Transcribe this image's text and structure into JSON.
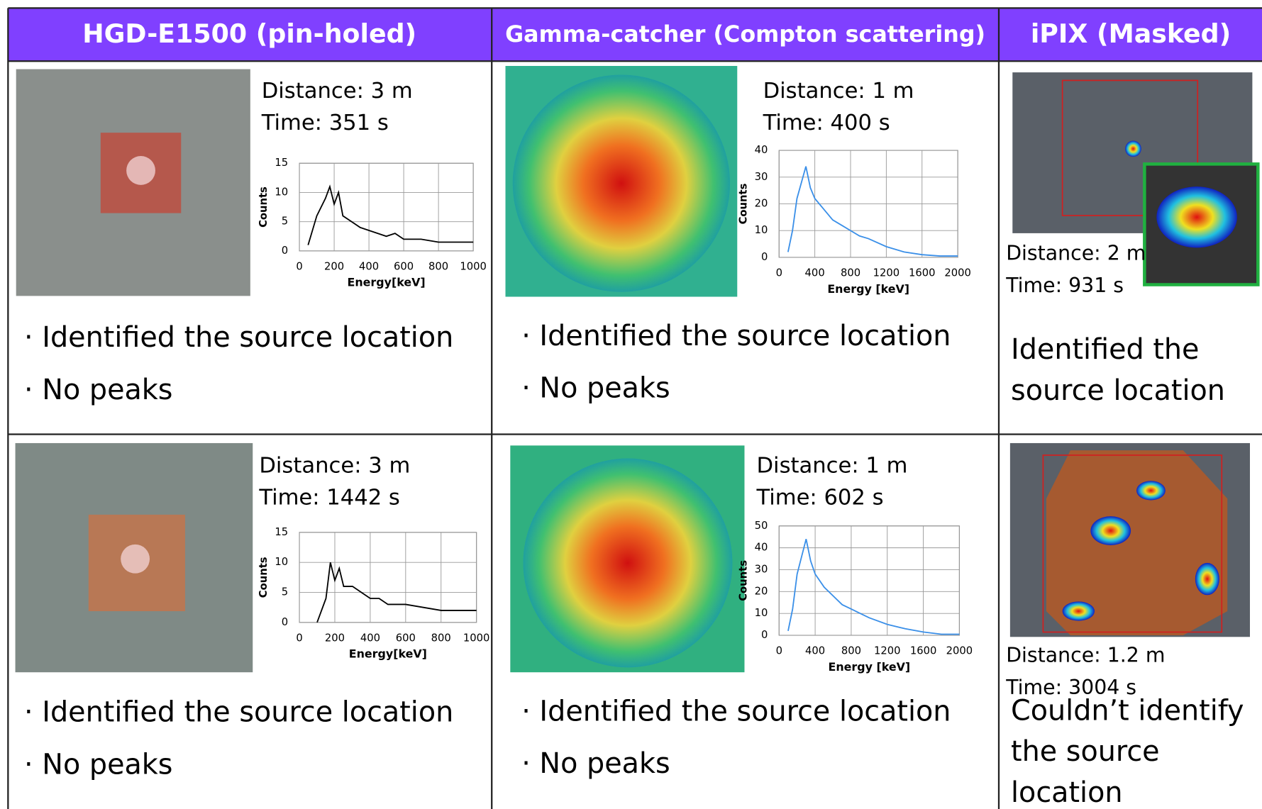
{
  "header": [
    "HGD-E1500 (pin-holed)",
    "Gamma-catcher (Compton scattering)",
    "iPIX (Masked)"
  ],
  "rows": [
    [
      {
        "distance": "Distance: 3 m",
        "time": "Time: 351 s",
        "spectrum": {
          "type": "line",
          "color": "#000000",
          "x_label": "Energy[keV]",
          "y_label": "Counts",
          "grid": true,
          "xlim": [
            0,
            1000
          ],
          "ylim": [
            0,
            15
          ],
          "xticks": [
            0,
            200,
            400,
            600,
            800,
            1000
          ],
          "yticks": [
            0,
            5,
            10,
            15
          ],
          "x": [
            50,
            100,
            150,
            175,
            200,
            225,
            250,
            300,
            350,
            400,
            450,
            500,
            550,
            600,
            700,
            800,
            900,
            1000
          ],
          "values": [
            1,
            6,
            9,
            11,
            8,
            10,
            6,
            5,
            4,
            3.5,
            3,
            2.5,
            3,
            2,
            2,
            1.5,
            1.5,
            1.5
          ]
        },
        "notes": [
          "· Identified the source location",
          "· No peaks"
        ]
      },
      {
        "distance": "Distance: 1 m",
        "time": "Time: 400 s",
        "spectrum": {
          "type": "line",
          "color": "#3a8fe8",
          "x_label": "Energy [keV]",
          "y_label": "Counts",
          "grid": true,
          "xlim": [
            0,
            2000
          ],
          "ylim": [
            0,
            40
          ],
          "xticks": [
            0,
            400,
            800,
            1200,
            1600,
            2000
          ],
          "yticks": [
            0,
            10,
            20,
            30,
            40
          ],
          "x": [
            100,
            150,
            200,
            250,
            300,
            350,
            400,
            500,
            600,
            700,
            800,
            900,
            1000,
            1200,
            1400,
            1600,
            1800,
            2000
          ],
          "values": [
            2,
            10,
            22,
            28,
            34,
            26,
            22,
            18,
            14,
            12,
            10,
            8,
            7,
            4,
            2,
            1,
            0.5,
            0.5
          ]
        },
        "notes": [
          "· Identified the source location",
          "· No peaks"
        ]
      },
      {
        "distance": "Distance: 2 m",
        "time": "Time: 931 s",
        "result": [
          "Identified the",
          "source location"
        ]
      }
    ],
    [
      {
        "distance": "Distance: 3 m",
        "time": "Time: 1442 s",
        "spectrum": {
          "type": "line",
          "color": "#000000",
          "x_label": "Energy[keV]",
          "y_label": "Counts",
          "grid": true,
          "xlim": [
            0,
            1000
          ],
          "ylim": [
            0,
            15
          ],
          "xticks": [
            0,
            200,
            400,
            600,
            800,
            1000
          ],
          "yticks": [
            0,
            5,
            10,
            15
          ],
          "x": [
            100,
            150,
            175,
            200,
            225,
            250,
            300,
            350,
            400,
            450,
            500,
            600,
            700,
            800,
            900,
            1000
          ],
          "values": [
            0,
            4,
            10,
            7,
            9,
            6,
            6,
            5,
            4,
            4,
            3,
            3,
            2.5,
            2,
            2,
            2
          ]
        },
        "notes": [
          "· Identified the source location",
          "· No peaks"
        ]
      },
      {
        "distance": "Distance: 1 m",
        "time": "Time: 602 s",
        "spectrum": {
          "type": "line",
          "color": "#3a8fe8",
          "x_label": "Energy [keV]",
          "y_label": "Counts",
          "grid": true,
          "xlim": [
            0,
            2000
          ],
          "ylim": [
            0,
            50
          ],
          "xticks": [
            0,
            400,
            800,
            1200,
            1600,
            2000
          ],
          "yticks": [
            0,
            10,
            20,
            30,
            40,
            50
          ],
          "x": [
            100,
            150,
            200,
            250,
            300,
            350,
            400,
            500,
            600,
            700,
            800,
            900,
            1000,
            1200,
            1400,
            1600,
            1800,
            2000
          ],
          "values": [
            2,
            12,
            28,
            36,
            44,
            34,
            28,
            22,
            18,
            14,
            12,
            10,
            8,
            5,
            3,
            1.5,
            0.5,
            0.5
          ]
        },
        "notes": [
          "· Identified the source location",
          "· No peaks"
        ]
      },
      {
        "distance": "Distance: 1.2 m",
        "time": "Time: 3004 s",
        "result": [
          "Couldn’t identify",
          "the source",
          "location"
        ]
      }
    ]
  ]
}
